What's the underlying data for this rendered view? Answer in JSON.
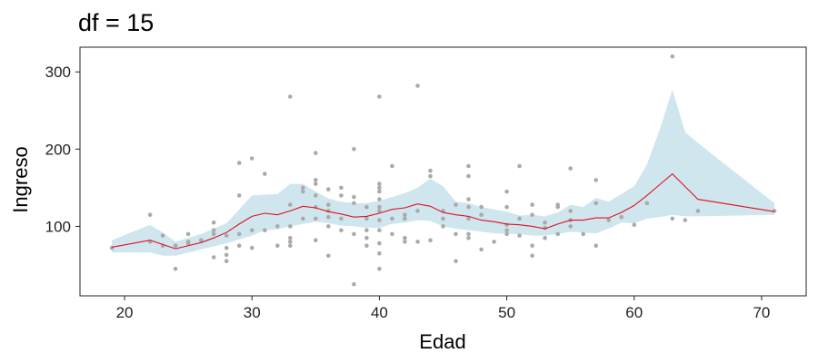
{
  "chart_data": {
    "type": "scatter",
    "title": "df = 15",
    "xlabel": "Edad",
    "ylabel": "Ingreso",
    "xlim": [
      16.5,
      73.5
    ],
    "ylim": [
      10,
      332
    ],
    "xticks": [
      20,
      30,
      40,
      50,
      60,
      70
    ],
    "yticks": [
      100,
      200,
      300
    ],
    "grid": false,
    "legend": "none",
    "colors": {
      "points": "#aaaaaa",
      "band": "#cfe6ee",
      "fit": "#e0101e"
    },
    "points": [
      [
        19,
        72
      ],
      [
        22,
        115
      ],
      [
        22,
        80
      ],
      [
        23,
        88
      ],
      [
        23,
        75
      ],
      [
        24,
        45
      ],
      [
        24,
        75
      ],
      [
        25,
        78
      ],
      [
        25,
        80
      ],
      [
        25,
        90
      ],
      [
        26,
        82
      ],
      [
        27,
        60
      ],
      [
        27,
        90
      ],
      [
        27,
        95
      ],
      [
        27,
        105
      ],
      [
        28,
        55
      ],
      [
        28,
        63
      ],
      [
        28,
        72
      ],
      [
        28,
        88
      ],
      [
        29,
        75
      ],
      [
        29,
        90
      ],
      [
        29,
        140
      ],
      [
        29,
        182
      ],
      [
        30,
        72
      ],
      [
        30,
        95
      ],
      [
        30,
        188
      ],
      [
        31,
        95
      ],
      [
        31,
        168
      ],
      [
        32,
        75
      ],
      [
        32,
        100
      ],
      [
        33,
        75
      ],
      [
        33,
        80
      ],
      [
        33,
        85
      ],
      [
        33,
        100
      ],
      [
        33,
        128
      ],
      [
        33,
        268
      ],
      [
        34,
        110
      ],
      [
        34,
        145
      ],
      [
        34,
        150
      ],
      [
        35,
        82
      ],
      [
        35,
        110
      ],
      [
        35,
        125
      ],
      [
        35,
        140
      ],
      [
        35,
        155
      ],
      [
        35,
        160
      ],
      [
        35,
        195
      ],
      [
        36,
        62
      ],
      [
        36,
        100
      ],
      [
        36,
        112
      ],
      [
        36,
        120
      ],
      [
        36,
        128
      ],
      [
        36,
        148
      ],
      [
        37,
        95
      ],
      [
        37,
        110
      ],
      [
        37,
        140
      ],
      [
        37,
        150
      ],
      [
        38,
        25
      ],
      [
        38,
        90
      ],
      [
        38,
        130
      ],
      [
        38,
        138
      ],
      [
        38,
        200
      ],
      [
        39,
        75
      ],
      [
        39,
        85
      ],
      [
        39,
        95
      ],
      [
        39,
        110
      ],
      [
        39,
        125
      ],
      [
        40,
        45
      ],
      [
        40,
        65
      ],
      [
        40,
        78
      ],
      [
        40,
        95
      ],
      [
        40,
        108
      ],
      [
        40,
        120
      ],
      [
        40,
        125
      ],
      [
        40,
        135
      ],
      [
        40,
        145
      ],
      [
        40,
        150
      ],
      [
        40,
        155
      ],
      [
        40,
        268
      ],
      [
        41,
        90
      ],
      [
        41,
        110
      ],
      [
        41,
        178
      ],
      [
        42,
        80
      ],
      [
        42,
        85
      ],
      [
        42,
        110
      ],
      [
        42,
        115
      ],
      [
        43,
        80
      ],
      [
        43,
        120
      ],
      [
        43,
        282
      ],
      [
        44,
        82
      ],
      [
        44,
        165
      ],
      [
        44,
        172
      ],
      [
        45,
        100
      ],
      [
        45,
        110
      ],
      [
        45,
        120
      ],
      [
        46,
        55
      ],
      [
        46,
        90
      ],
      [
        46,
        128
      ],
      [
        47,
        85
      ],
      [
        47,
        90
      ],
      [
        47,
        110
      ],
      [
        47,
        125
      ],
      [
        47,
        135
      ],
      [
        47,
        165
      ],
      [
        47,
        178
      ],
      [
        48,
        70
      ],
      [
        48,
        115
      ],
      [
        48,
        125
      ],
      [
        49,
        80
      ],
      [
        50,
        90
      ],
      [
        50,
        95
      ],
      [
        50,
        102
      ],
      [
        50,
        125
      ],
      [
        50,
        145
      ],
      [
        51,
        88
      ],
      [
        51,
        110
      ],
      [
        51,
        178
      ],
      [
        52,
        62
      ],
      [
        52,
        75
      ],
      [
        52,
        115
      ],
      [
        52,
        128
      ],
      [
        53,
        85
      ],
      [
        53,
        98
      ],
      [
        53,
        105
      ],
      [
        54,
        90
      ],
      [
        54,
        125
      ],
      [
        54,
        128
      ],
      [
        55,
        100
      ],
      [
        55,
        108
      ],
      [
        55,
        120
      ],
      [
        55,
        175
      ],
      [
        56,
        90
      ],
      [
        57,
        75
      ],
      [
        57,
        130
      ],
      [
        57,
        160
      ],
      [
        58,
        108
      ],
      [
        59,
        112
      ],
      [
        60,
        102
      ],
      [
        61,
        130
      ],
      [
        63,
        110
      ],
      [
        63,
        320
      ],
      [
        64,
        108
      ],
      [
        65,
        120
      ],
      [
        71,
        120
      ]
    ],
    "fit": {
      "x": [
        19,
        22,
        24,
        26,
        27,
        28,
        29,
        30,
        31,
        32,
        33,
        34,
        35,
        36,
        37,
        38,
        39,
        40,
        41,
        42,
        43,
        44,
        45,
        46,
        47,
        48,
        49,
        50,
        51,
        52,
        53,
        54,
        55,
        56,
        57,
        58,
        59,
        60,
        61,
        62,
        63,
        65,
        71
      ],
      "y": [
        73,
        82,
        71,
        79,
        85,
        92,
        103,
        113,
        117,
        115,
        120,
        126,
        124,
        119,
        116,
        112,
        113,
        117,
        122,
        124,
        129,
        126,
        118,
        115,
        113,
        108,
        106,
        103,
        102,
        100,
        97,
        103,
        108,
        108,
        111,
        111,
        118,
        127,
        140,
        154,
        168,
        135,
        119
      ]
    },
    "band": {
      "x": [
        19,
        22,
        23,
        24,
        26,
        28,
        30,
        31,
        32,
        33,
        34,
        35,
        36,
        37,
        38,
        39,
        40,
        41,
        42,
        43,
        44,
        45,
        46,
        47,
        48,
        49,
        50,
        51,
        52,
        53,
        54,
        55,
        56,
        57,
        58,
        59,
        60,
        61,
        62,
        63,
        64,
        65,
        71
      ],
      "lower": [
        66,
        66,
        62,
        62,
        70,
        78,
        88,
        95,
        96,
        100,
        103,
        106,
        104,
        101,
        100,
        98,
        98,
        103,
        105,
        108,
        107,
        100,
        97,
        95,
        93,
        91,
        90,
        90,
        88,
        88,
        90,
        93,
        92,
        91,
        97,
        105,
        104,
        110,
        112,
        115,
        113,
        113,
        115
      ],
      "upper": [
        82,
        102,
        92,
        80,
        90,
        104,
        140,
        141,
        142,
        155,
        155,
        145,
        136,
        132,
        130,
        130,
        133,
        138,
        143,
        150,
        162,
        152,
        132,
        130,
        125,
        122,
        119,
        114,
        115,
        113,
        118,
        128,
        125,
        137,
        132,
        142,
        152,
        180,
        225,
        277,
        222,
        208,
        130
      ]
    }
  }
}
